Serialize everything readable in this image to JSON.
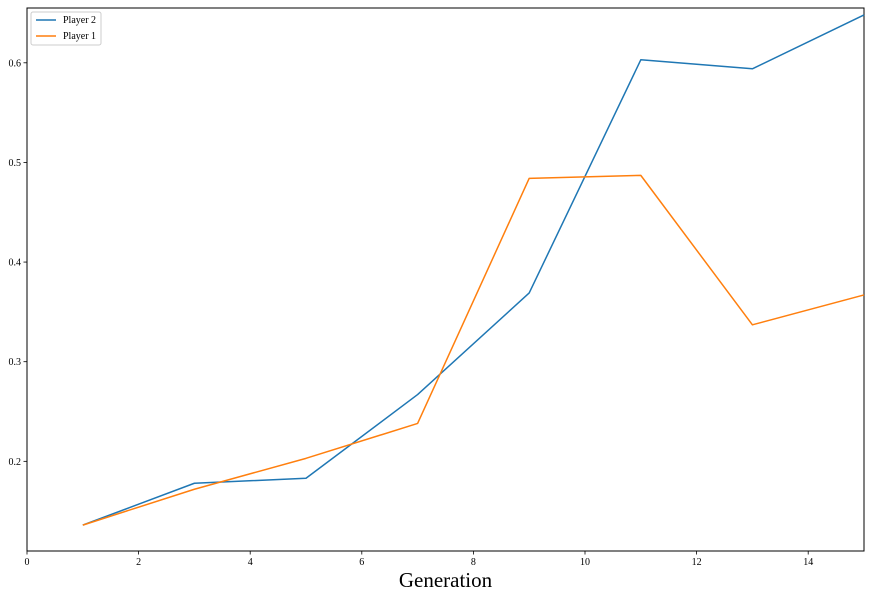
{
  "chart_data": {
    "type": "line",
    "title": "",
    "xlabel": "Generation",
    "ylabel": "",
    "xlim": [
      0,
      15
    ],
    "ylim": [
      0.11,
      0.655
    ],
    "xticks": [
      0,
      2,
      4,
      6,
      8,
      10,
      12,
      14
    ],
    "xtick_labels": [
      "0",
      "2",
      "4",
      "6",
      "8",
      "10",
      "12",
      "14"
    ],
    "yticks": [
      0.2,
      0.3,
      0.4,
      0.5,
      0.6
    ],
    "ytick_labels": [
      "0.2",
      "0.3",
      "0.4",
      "0.5",
      "0.6"
    ],
    "grid": false,
    "legend_position": "top-left",
    "x": [
      1,
      3,
      5,
      7,
      9,
      11,
      13,
      15
    ],
    "series": [
      {
        "name": "Player 2",
        "color": "#1f77b4",
        "values": [
          0.136,
          0.178,
          0.183,
          0.267,
          0.369,
          0.603,
          0.594,
          0.648
        ]
      },
      {
        "name": "Player 1",
        "color": "#ff7f0e",
        "values": [
          0.136,
          0.172,
          0.203,
          0.238,
          0.484,
          0.487,
          0.337,
          0.367
        ]
      }
    ]
  }
}
